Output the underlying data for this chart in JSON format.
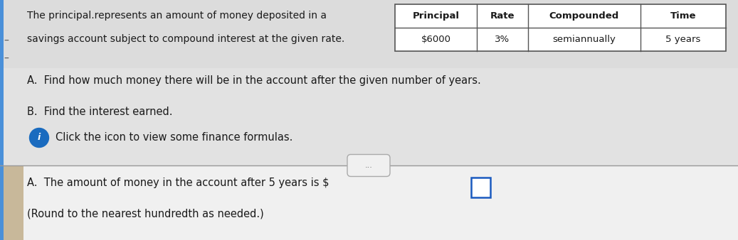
{
  "bg_color": "#e8e8e8",
  "top_bg": "#e8e8e8",
  "bottom_bg": "#f5f5f5",
  "left_blue_bar": "#4a90d9",
  "left_dash_color": "#555555",
  "desc_line1": "The principal.represents an amount of money deposited in a",
  "desc_line2": "savings account subject to compound interest at the given rate.",
  "table_headers": [
    "Principal",
    "Rate",
    "Compounded",
    "Time"
  ],
  "table_values": [
    "$6000",
    "3%",
    "semiannually",
    "5 years"
  ],
  "point_a": "A.  Find how much money there will be in the account after the given number of years.",
  "point_b": "B.  Find the interest earned.",
  "click_text": "Click the icon to view some finance formulas.",
  "divider_btn_text": "...",
  "bottom_line1": "A.  The amount of money in the account after 5 years is $",
  "bottom_line2": "(Round to the nearest hundredth as needed.)",
  "text_color": "#1a1a1a",
  "table_border_color": "#555555",
  "info_icon_color": "#1a6bbf",
  "divider_color": "#999999",
  "divider_btn_color": "#f0f0f0",
  "input_box_border": "#1a5abf"
}
